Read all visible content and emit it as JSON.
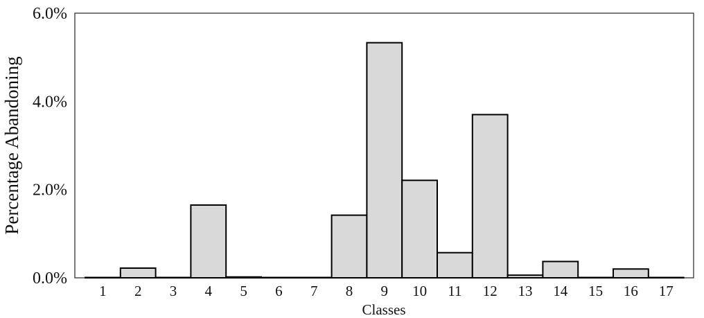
{
  "chart_data": {
    "type": "bar",
    "title": "",
    "xlabel": "Classes",
    "ylabel": "Percentage Abandoning",
    "categories": [
      "1",
      "2",
      "3",
      "4",
      "5",
      "6",
      "7",
      "8",
      "9",
      "10",
      "11",
      "12",
      "13",
      "14",
      "15",
      "16",
      "17"
    ],
    "values": [
      0.0,
      0.22,
      0.0,
      1.65,
      0.02,
      0.0,
      0.0,
      1.42,
      5.33,
      2.21,
      0.57,
      3.7,
      0.06,
      0.37,
      0.0,
      0.2,
      0.0
    ],
    "ylim": [
      0,
      6
    ],
    "yticks": [
      "0.0%",
      "2.0%",
      "4.0%",
      "6.0%"
    ],
    "ytick_values": [
      0,
      2,
      4,
      6
    ],
    "grid": false,
    "legend": "none",
    "colors": {
      "bar_fill": "#d9d9d9",
      "bar_stroke": "#000000",
      "axis": "#333333"
    }
  }
}
